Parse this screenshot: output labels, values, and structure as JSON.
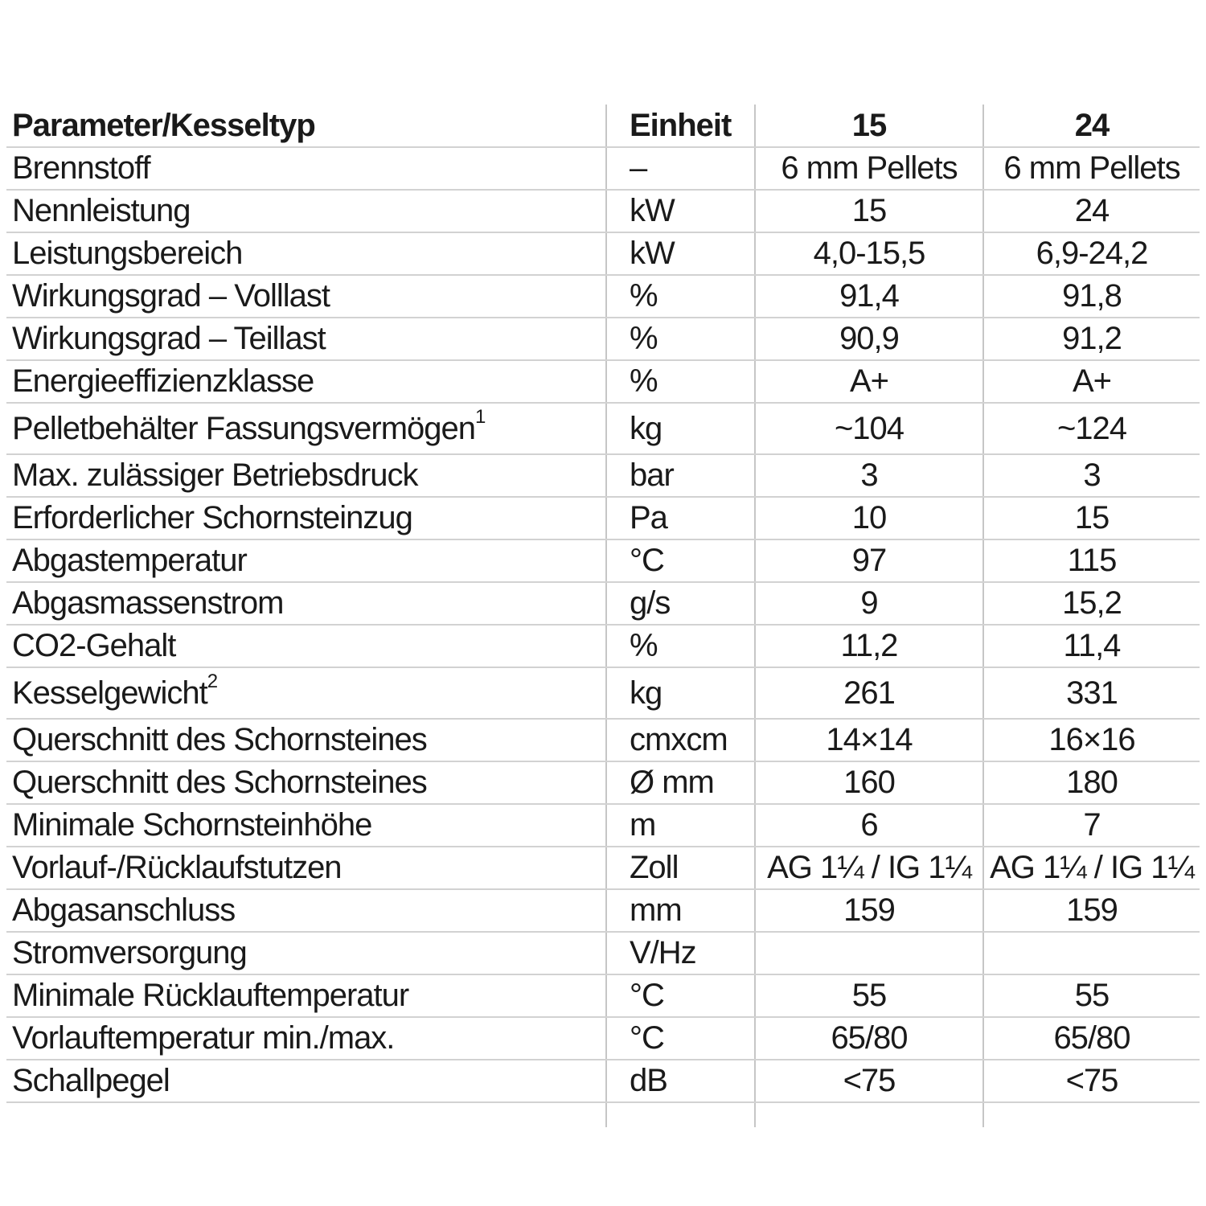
{
  "header": {
    "param": "Parameter/Kesseltyp",
    "unit": "Einheit",
    "col15": "15",
    "col24": "24"
  },
  "rows": [
    {
      "label": "Brennstoff",
      "sup": "",
      "unit": "–",
      "v15": "6 mm Pellets",
      "v24": "6 mm Pellets"
    },
    {
      "label": "Nennleistung",
      "sup": "",
      "unit": "kW",
      "v15": "15",
      "v24": "24"
    },
    {
      "label": "Leistungsbereich",
      "sup": "",
      "unit": "kW",
      "v15": "4,0-15,5",
      "v24": "6,9-24,2"
    },
    {
      "label": "Wirkungsgrad – Volllast",
      "sup": "",
      "unit": "%",
      "v15": "91,4",
      "v24": "91,8"
    },
    {
      "label": "Wirkungsgrad – Teillast",
      "sup": "",
      "unit": "%",
      "v15": "90,9",
      "v24": "91,2"
    },
    {
      "label": "Energieeffizienzklasse",
      "sup": "",
      "unit": "%",
      "v15": "A+",
      "v24": "A+"
    },
    {
      "label": "Pelletbehälter Fassungsvermögen",
      "sup": "1",
      "unit": "kg",
      "v15": "~104",
      "v24": "~124"
    },
    {
      "label": "Max. zulässiger Betriebsdruck",
      "sup": "",
      "unit": "bar",
      "v15": "3",
      "v24": "3"
    },
    {
      "label": "Erforderlicher Schornsteinzug",
      "sup": "",
      "unit": "Pa",
      "v15": "10",
      "v24": "15"
    },
    {
      "label": "Abgastemperatur",
      "sup": "",
      "unit": "°C",
      "v15": "97",
      "v24": "115"
    },
    {
      "label": "Abgasmassenstrom",
      "sup": "",
      "unit": "g/s",
      "v15": "9",
      "v24": "15,2"
    },
    {
      "label": "CO2-Gehalt",
      "sup": "",
      "unit": "%",
      "v15": "11,2",
      "v24": "11,4"
    },
    {
      "label": "Kesselgewicht",
      "sup": "2",
      "unit": "kg",
      "v15": "261",
      "v24": "331"
    },
    {
      "label": "Querschnitt des Schornsteines",
      "sup": "",
      "unit": "cmxcm",
      "v15": "14×14",
      "v24": "16×16"
    },
    {
      "label": "Querschnitt des Schornsteines",
      "sup": "",
      "unit": "Ø mm",
      "v15": "160",
      "v24": "180"
    },
    {
      "label": "Minimale Schornsteinhöhe",
      "sup": "",
      "unit": "m",
      "v15": "6",
      "v24": "7"
    },
    {
      "label": "Vorlauf-/Rücklaufstutzen",
      "sup": "",
      "unit": "Zoll",
      "v15": "AG 1¼ / IG 1¼",
      "v24": "AG 1¼ / IG 1¼"
    },
    {
      "label": "Abgasanschluss",
      "sup": "",
      "unit": "mm",
      "v15": "159",
      "v24": "159"
    },
    {
      "label": "Stromversorgung",
      "sup": "",
      "unit": "V/Hz",
      "v15": "",
      "v24": ""
    },
    {
      "label": "Minimale Rücklauftemperatur",
      "sup": "",
      "unit": "°C",
      "v15": "55",
      "v24": "55"
    },
    {
      "label": "Vorlauftemperatur min./max.",
      "sup": "",
      "unit": "°C",
      "v15": "65/80",
      "v24": "65/80"
    },
    {
      "label": "Schallpegel",
      "sup": "",
      "unit": "dB",
      "v15": "<75",
      "v24": "<75"
    }
  ]
}
